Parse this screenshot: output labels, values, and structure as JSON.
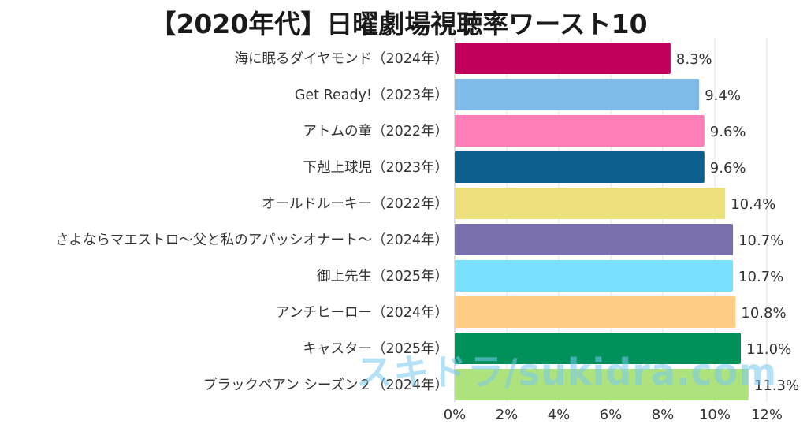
{
  "chart_data": {
    "type": "bar",
    "orientation": "horizontal",
    "title": "【2020年代】日曜劇場視聴率ワースト10",
    "categories": [
      "海に眠るダイヤモンド（2024年）",
      "Get Ready!（2023年）",
      "アトムの童（2022年）",
      "下剋上球児（2023年）",
      "オールドルーキー（2022年）",
      "さよならマエストロ〜父と私のアパッシオナート〜（2024年）",
      "御上先生（2025年）",
      "アンチヒーロー（2024年）",
      "キャスター（2025年）",
      "ブラックペアン シーズン２（2024年）"
    ],
    "values": [
      8.3,
      9.4,
      9.6,
      9.6,
      10.4,
      10.7,
      10.7,
      10.8,
      11.0,
      11.3
    ],
    "value_labels": [
      "8.3%",
      "9.4%",
      "9.6%",
      "9.6%",
      "10.4%",
      "10.7%",
      "10.7%",
      "10.8%",
      "11.0%",
      "11.3%"
    ],
    "colors": [
      "#c0005a",
      "#7fbbe8",
      "#ff7eb8",
      "#0c5e8c",
      "#ece07c",
      "#7b70ae",
      "#79e0fe",
      "#fecc85",
      "#00905a",
      "#aee27d"
    ],
    "xlim": [
      0,
      12
    ],
    "xticks": [
      0,
      2,
      4,
      6,
      8,
      10,
      12
    ],
    "xtick_labels": [
      "0%",
      "2%",
      "4%",
      "6%",
      "8%",
      "10%",
      "12%"
    ],
    "xlabel": "",
    "ylabel": "",
    "grid": true,
    "watermark": "スキドラ/sukidra.com"
  }
}
